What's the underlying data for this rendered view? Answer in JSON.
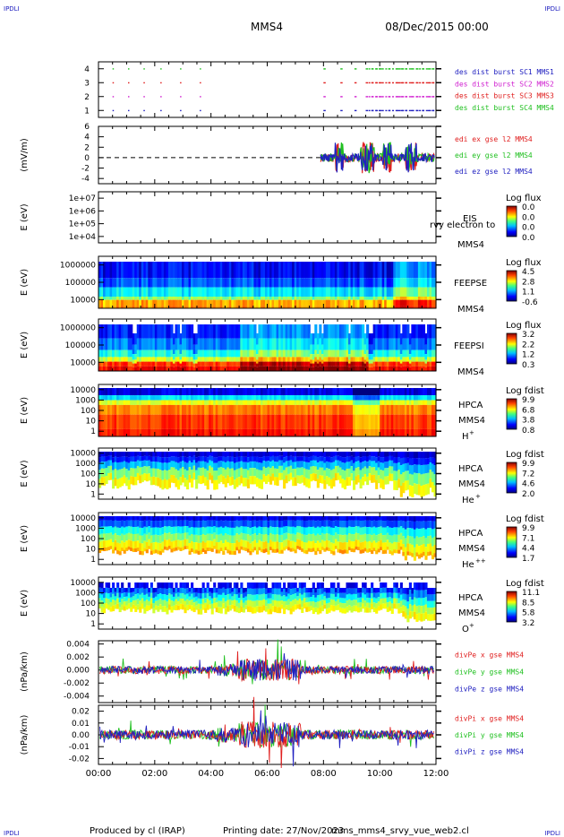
{
  "header": {
    "corner_tl": "IPDLI",
    "corner_tr": "IPDLI",
    "corner_bl": "IPDLI",
    "corner_br": "IPDLI",
    "spacecraft": "MMS4",
    "date": "08/Dec/2015 00:00"
  },
  "footer": {
    "produced_by": "Produced by cl (IRAP)",
    "printing_date": "Printing date: 27/Nov/2023",
    "file": "mms_mms4_srvy_vue_web2.cl"
  },
  "stray_text": "rvy electron to",
  "chart_data": {
    "type": "multi-panel time series / spectrograms",
    "x_ticks": [
      "00:00",
      "02:00",
      "04:00",
      "06:00",
      "08:00",
      "10:00",
      "12:00"
    ],
    "x_range_hours": [
      0,
      12
    ],
    "panels": [
      {
        "id": "burst",
        "type": "scatter",
        "y_ticks": [
          "1",
          "2",
          "3",
          "4"
        ],
        "ylim": [
          0.5,
          4.5
        ],
        "legend": [
          {
            "text": "des dist burst SC1 MMS1",
            "color": "#2020c0"
          },
          {
            "text": "des dist burst SC2 MMS2",
            "color": "#d020d0"
          },
          {
            "text": "des dist burst SC3 MMS3",
            "color": "#e02020"
          },
          {
            "text": "des dist burst SC4 MMS4",
            "color": "#20c020"
          }
        ],
        "rows": [
          {
            "y": 1,
            "color": "#2020c0"
          },
          {
            "y": 2,
            "color": "#d020d0"
          },
          {
            "y": 3,
            "color": "#e02020"
          },
          {
            "y": 4,
            "color": "#20c020"
          }
        ],
        "burst_times_hours": [
          0.5,
          1.05,
          1.6,
          2.2,
          2.9,
          3.6,
          8.0,
          8.6,
          9.1,
          9.5,
          9.7,
          9.85,
          10.0,
          10.3,
          10.6,
          10.75,
          10.9,
          11.1,
          11.3,
          11.5,
          11.7,
          11.85
        ]
      },
      {
        "id": "edi",
        "type": "line",
        "ylabel": "(mV/m)",
        "y_ticks": [
          "-4",
          "-2",
          "0",
          "2",
          "4",
          "6"
        ],
        "ylim": [
          -5,
          6
        ],
        "legend": [
          {
            "text": "edi ex gse l2 MMS4",
            "color": "#e02020"
          },
          {
            "text": "edi ey gse l2 MMS4",
            "color": "#20c020"
          },
          {
            "text": "edi ez gse l2 MMS4",
            "color": "#2020c0"
          }
        ],
        "data_start_hours": 7.9
      },
      {
        "id": "eis",
        "type": "heatmap",
        "ylabel": "E (eV)",
        "y_ticks": [
          "1e+04",
          "1e+05",
          "1e+06",
          "1e+07"
        ],
        "instrument": "EIS",
        "spacecraft": "MMS4",
        "colorbar_title": "Log flux",
        "colorbar_ticks": [
          "0.0",
          "0.0",
          "0.0",
          "0.0"
        ]
      },
      {
        "id": "feepse",
        "type": "heatmap",
        "ylabel": "E (eV)",
        "y_ticks": [
          "10000",
          "100000",
          "1000000"
        ],
        "instrument": "FEEPSE",
        "spacecraft": "MMS4",
        "colorbar_title": "Log flux",
        "colorbar_ticks": [
          "4.5",
          "2.8",
          "1.1",
          "-0.6"
        ]
      },
      {
        "id": "feepsi",
        "type": "heatmap",
        "ylabel": "E (eV)",
        "y_ticks": [
          "10000",
          "100000",
          "1000000"
        ],
        "instrument": "FEEPSI",
        "spacecraft": "MMS4",
        "colorbar_title": "Log flux",
        "colorbar_ticks": [
          "3.2",
          "2.2",
          "1.2",
          "0.3"
        ]
      },
      {
        "id": "hpca_h",
        "type": "heatmap",
        "ylabel": "E (eV)",
        "y_ticks": [
          "1",
          "10",
          "100",
          "1000",
          "10000"
        ],
        "instrument": "HPCA",
        "spacecraft": "MMS4",
        "species": "H",
        "charge": "+",
        "colorbar_title": "Log fdist",
        "colorbar_ticks": [
          "9.9",
          "6.8",
          "3.8",
          "0.8"
        ]
      },
      {
        "id": "hpca_he1",
        "type": "heatmap",
        "ylabel": "E (eV)",
        "y_ticks": [
          "1",
          "10",
          "100",
          "1000",
          "10000"
        ],
        "instrument": "HPCA",
        "spacecraft": "MMS4",
        "species": "He",
        "charge": "+",
        "colorbar_title": "Log fdist",
        "colorbar_ticks": [
          "9.9",
          "7.2",
          "4.6",
          "2.0"
        ]
      },
      {
        "id": "hpca_he2",
        "type": "heatmap",
        "ylabel": "E (eV)",
        "y_ticks": [
          "1",
          "10",
          "100",
          "1000",
          "10000"
        ],
        "instrument": "HPCA",
        "spacecraft": "MMS4",
        "species": "He",
        "charge": "++",
        "colorbar_title": "Log fdist",
        "colorbar_ticks": [
          "9.9",
          "7.1",
          "4.4",
          "1.7"
        ]
      },
      {
        "id": "hpca_o",
        "type": "heatmap",
        "ylabel": "E (eV)",
        "y_ticks": [
          "1",
          "10",
          "100",
          "1000",
          "10000"
        ],
        "instrument": "HPCA",
        "spacecraft": "MMS4",
        "species": "O",
        "charge": "+",
        "colorbar_title": "Log fdist",
        "colorbar_ticks": [
          "11.1",
          "8.5",
          "5.8",
          "3.2"
        ]
      },
      {
        "id": "divpe",
        "type": "line",
        "ylabel": "(nPa/km)",
        "y_ticks": [
          "-0.004",
          "-0.002",
          "0.000",
          "0.002",
          "0.004"
        ],
        "ylim": [
          -0.005,
          0.0045
        ],
        "legend": [
          {
            "text": "divPe x gse MMS4",
            "color": "#e02020"
          },
          {
            "text": "divPe y gse MMS4",
            "color": "#20c020"
          },
          {
            "text": "divPe z gse MMS4",
            "color": "#2020c0"
          }
        ]
      },
      {
        "id": "divpi",
        "type": "line",
        "ylabel": "(nPa/km)",
        "y_ticks": [
          "-0.02",
          "-0.01",
          "0.00",
          "0.01",
          "0.02"
        ],
        "ylim": [
          -0.025,
          0.025
        ],
        "legend": [
          {
            "text": "divPi x gse MMS4",
            "color": "#e02020"
          },
          {
            "text": "divPi y gse MMS4",
            "color": "#20c020"
          },
          {
            "text": "divPi z gse MMS4",
            "color": "#2020c0"
          }
        ]
      }
    ]
  }
}
